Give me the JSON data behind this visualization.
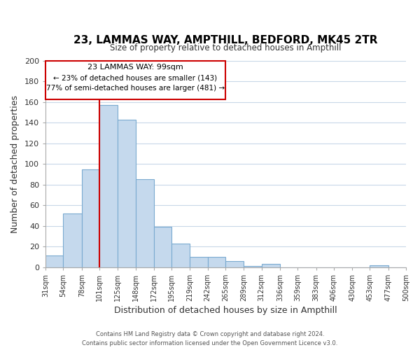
{
  "title": "23, LAMMAS WAY, AMPTHILL, BEDFORD, MK45 2TR",
  "subtitle": "Size of property relative to detached houses in Ampthill",
  "xlabel": "Distribution of detached houses by size in Ampthill",
  "ylabel": "Number of detached properties",
  "bar_edges": [
    31,
    54,
    78,
    101,
    125,
    148,
    172,
    195,
    219,
    242,
    265,
    289,
    312,
    336,
    359,
    383,
    406,
    430,
    453,
    477,
    500
  ],
  "bar_heights": [
    11,
    52,
    95,
    157,
    143,
    85,
    39,
    23,
    10,
    10,
    6,
    1,
    3,
    0,
    0,
    0,
    0,
    0,
    2,
    0
  ],
  "bar_color": "#c5d9ed",
  "bar_edge_color": "#7aaad0",
  "vline_x": 101,
  "vline_color": "#cc0000",
  "ylim": [
    0,
    200
  ],
  "annotation_title": "23 LAMMAS WAY: 99sqm",
  "annotation_line1": "← 23% of detached houses are smaller (143)",
  "annotation_line2": "77% of semi-detached houses are larger (481) →",
  "annotation_box_color": "#ffffff",
  "annotation_box_edge": "#cc0000",
  "footer_line1": "Contains HM Land Registry data © Crown copyright and database right 2024.",
  "footer_line2": "Contains public sector information licensed under the Open Government Licence v3.0.",
  "tick_labels": [
    "31sqm",
    "54sqm",
    "78sqm",
    "101sqm",
    "125sqm",
    "148sqm",
    "172sqm",
    "195sqm",
    "219sqm",
    "242sqm",
    "265sqm",
    "289sqm",
    "312sqm",
    "336sqm",
    "359sqm",
    "383sqm",
    "406sqm",
    "430sqm",
    "453sqm",
    "477sqm",
    "500sqm"
  ],
  "background_color": "#ffffff",
  "grid_color": "#c8d8e8"
}
